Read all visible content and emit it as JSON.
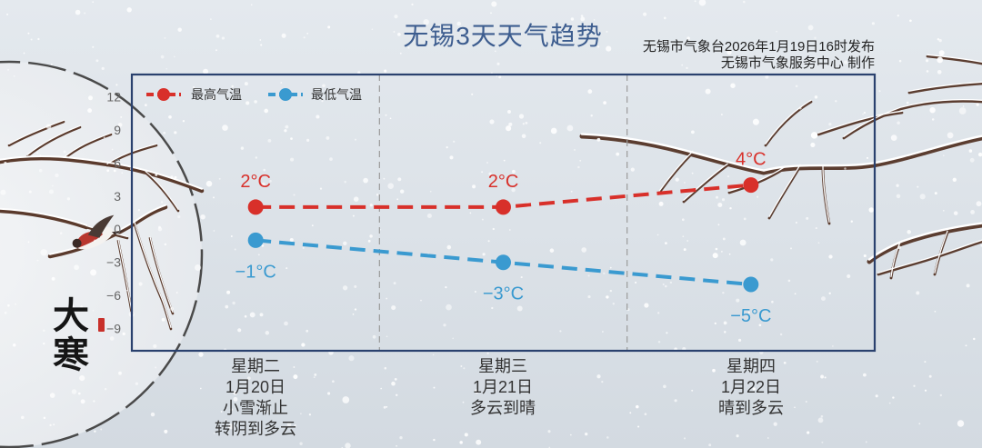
{
  "title": "无锡3天天气趋势",
  "issuer": "无锡市气象台2026年1月19日16时发布",
  "producer": "无锡市气象服务中心 制作",
  "solar_term": "大寒",
  "colors": {
    "title": "#3d5d8f",
    "frame": "#2a416e",
    "text": "#333333",
    "tick": "#666666"
  },
  "days": [
    {
      "date": "1月20日",
      "weather": [
        "小雪渐止",
        "转阴到多云"
      ]
    },
    {
      "date": "1月21日",
      "weather": [
        "多云到晴"
      ]
    },
    {
      "date": "1月22日",
      "weather": [
        "晴到多云"
      ]
    }
  ],
  "chart_data": {
    "type": "line",
    "categories": [
      "星期二",
      "星期三",
      "星期四"
    ],
    "series": [
      {
        "name": "最高气温",
        "color": "#d8302a",
        "values": [
          2,
          2,
          4
        ],
        "data_labels": [
          "2°C",
          "2°C",
          "4°C"
        ]
      },
      {
        "name": "最低气温",
        "color": "#3a9ad0",
        "values": [
          -1,
          -3,
          -5
        ],
        "data_labels": [
          "−1°C",
          "−3°C",
          "−5°C"
        ]
      }
    ],
    "yticks": [
      12,
      9,
      6,
      3,
      0,
      -3,
      -6,
      -9
    ],
    "ytick_labels": [
      "12",
      "9",
      "6",
      "3",
      "0",
      "−3",
      "−6",
      "−9"
    ],
    "ylim": [
      -11,
      14
    ],
    "legend": "top-left",
    "grid": {
      "x": true,
      "y": false
    }
  }
}
